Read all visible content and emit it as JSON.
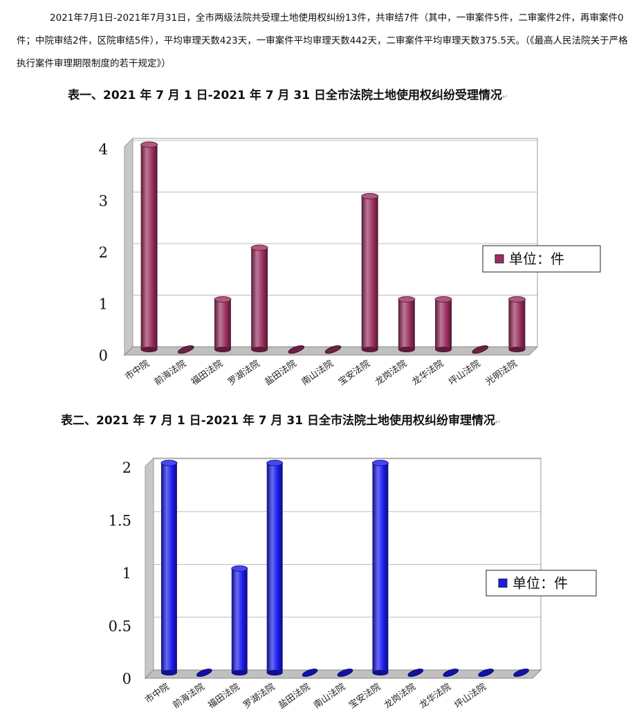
{
  "paragraph": "2021年7月1日-2021年7月31日，全市两级法院共受理土地使用权纠纷13件，共审结7件（其中，一审案件5件，二审案件2件，再审案件0件；中院审结2件，区院审结5件），平均审理天数423天，一审案件平均审理天数442天，二审案件平均审理天数375.5天。（《最高人民法院关于严格执行案件审理期限制度的若干规定》）",
  "chart_data": [
    {
      "type": "bar",
      "title": "表一、2021 年 7 月 1 日-2021 年 7 月 31 日全市法院土地使用权纠纷受理情况",
      "categories": [
        "市中院",
        "前海法院",
        "福田法院",
        "罗湖法院",
        "盐田法院",
        "南山法院",
        "宝安法院",
        "龙岗法院",
        "龙华法院",
        "坪山法院",
        "光明法院"
      ],
      "series": [
        {
          "name": "单位：件",
          "values": [
            4,
            0,
            1,
            2,
            0,
            0,
            3,
            1,
            1,
            0,
            1
          ],
          "color": "#9b2f5f"
        }
      ],
      "yticks": [
        "0",
        "1",
        "2",
        "3",
        "4"
      ],
      "ylim": [
        0,
        4
      ],
      "grid": true,
      "legend": "right",
      "style": "3d-cylinder"
    },
    {
      "type": "bar",
      "title": "表二、2021 年 7 月 1 日-2021 年 7 月 31 日全市法院土地使用权纠纷审理情况",
      "categories": [
        "市中院",
        "前海法院",
        "福田法院",
        "罗湖法院",
        "盐田法院",
        "南山法院",
        "宝安法院",
        "龙岗法院",
        "龙华法院",
        "坪山法院",
        ""
      ],
      "series": [
        {
          "name": "单位：件",
          "values": [
            2,
            0,
            1,
            2,
            0,
            0,
            2,
            0,
            0,
            0,
            0
          ],
          "color": "#1a1aee"
        }
      ],
      "yticks": [
        "0",
        "0.5",
        "1",
        "1.5",
        "2"
      ],
      "ylim": [
        0,
        2
      ],
      "grid": true,
      "legend": "right",
      "style": "3d-cylinder"
    }
  ]
}
